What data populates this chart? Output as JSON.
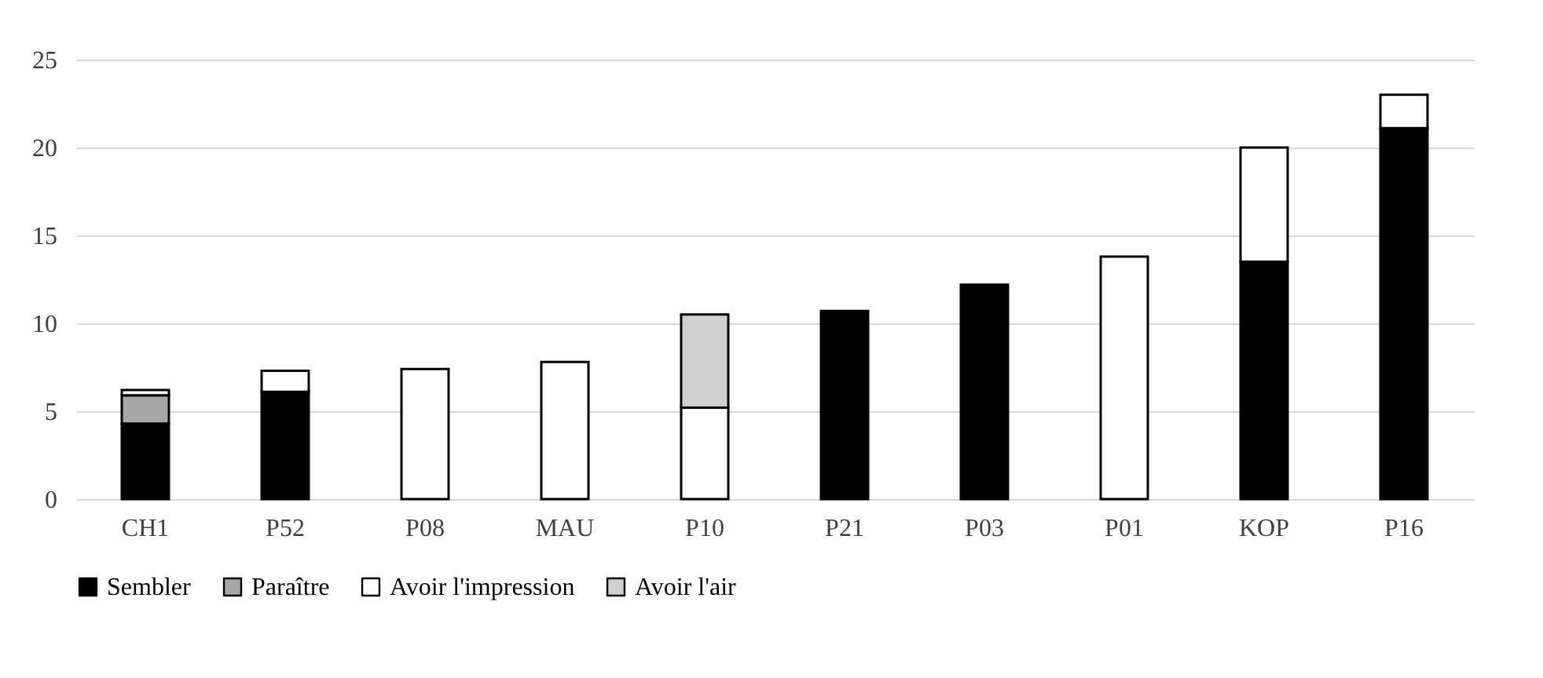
{
  "chart_data": {
    "type": "bar",
    "stacked": true,
    "categories": [
      "CH1",
      "P52",
      "P08",
      "MAU",
      "P10",
      "P21",
      "P03",
      "P01",
      "KOP",
      "P16"
    ],
    "series": [
      {
        "name": "Sembler",
        "color": "#000000",
        "values": [
          4.3,
          6.1,
          null,
          null,
          null,
          10.7,
          12.2,
          null,
          13.5,
          21.1
        ]
      },
      {
        "name": "Paraître",
        "color": "#a6a6a6",
        "values": [
          1.6,
          null,
          null,
          null,
          null,
          null,
          null,
          null,
          null,
          null
        ]
      },
      {
        "name": "Avoir l'impression",
        "color": "#ffffff",
        "values": [
          0.3,
          1.2,
          7.4,
          7.8,
          5.2,
          null,
          null,
          13.8,
          6.5,
          1.9
        ]
      },
      {
        "name": "Avoir l'air",
        "color": "#d0d0d0",
        "values": [
          null,
          null,
          null,
          null,
          5.3,
          null,
          null,
          null,
          null,
          null
        ]
      }
    ],
    "ylim": [
      0,
      25
    ],
    "yticks": [
      0,
      5,
      10,
      15,
      20,
      25
    ],
    "grid": "y",
    "legend": "bottom"
  }
}
